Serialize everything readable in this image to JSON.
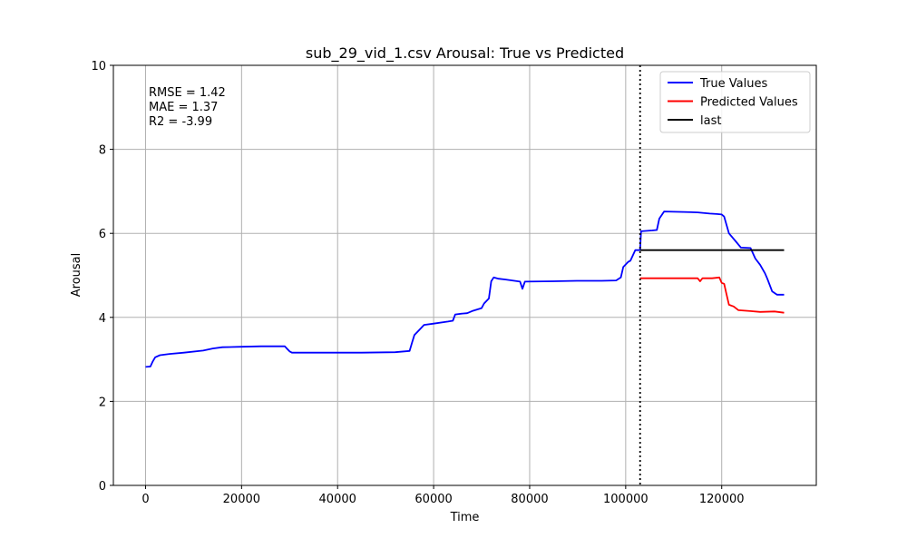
{
  "chart_data": {
    "type": "line",
    "title": "sub_29_vid_1.csv Arousal: True vs Predicted",
    "xlabel": "Time",
    "ylabel": "Arousal",
    "xlim": [
      -6700,
      139700
    ],
    "ylim": [
      0,
      10
    ],
    "x_ticks": [
      0,
      20000,
      40000,
      60000,
      80000,
      100000,
      120000
    ],
    "y_ticks": [
      0,
      2,
      4,
      6,
      8,
      10
    ],
    "grid": true,
    "legend_position": "upper right",
    "metrics": [
      "RMSE = 1.42",
      "MAE = 1.37",
      "R2 = -3.99"
    ],
    "vertical_marker": {
      "x": 103000,
      "style": "dotted",
      "color": "#000000"
    },
    "series": [
      {
        "name": "True Values",
        "color": "#0000ff",
        "points": [
          [
            0,
            2.82
          ],
          [
            1000,
            2.83
          ],
          [
            1500,
            2.95
          ],
          [
            2000,
            3.05
          ],
          [
            3000,
            3.1
          ],
          [
            5000,
            3.13
          ],
          [
            8000,
            3.16
          ],
          [
            12000,
            3.21
          ],
          [
            14000,
            3.26
          ],
          [
            16000,
            3.29
          ],
          [
            20000,
            3.3
          ],
          [
            24000,
            3.31
          ],
          [
            29000,
            3.31
          ],
          [
            29500,
            3.25
          ],
          [
            30000,
            3.19
          ],
          [
            30500,
            3.16
          ],
          [
            35000,
            3.16
          ],
          [
            45000,
            3.16
          ],
          [
            52000,
            3.17
          ],
          [
            55000,
            3.2
          ],
          [
            55500,
            3.4
          ],
          [
            56000,
            3.58
          ],
          [
            57000,
            3.7
          ],
          [
            58000,
            3.82
          ],
          [
            60000,
            3.85
          ],
          [
            63000,
            3.9
          ],
          [
            64000,
            3.92
          ],
          [
            64500,
            4.07
          ],
          [
            66000,
            4.09
          ],
          [
            67000,
            4.1
          ],
          [
            68000,
            4.15
          ],
          [
            70000,
            4.22
          ],
          [
            70500,
            4.33
          ],
          [
            71500,
            4.45
          ],
          [
            72000,
            4.86
          ],
          [
            72500,
            4.95
          ],
          [
            73500,
            4.92
          ],
          [
            75000,
            4.9
          ],
          [
            78000,
            4.85
          ],
          [
            78500,
            4.68
          ],
          [
            79000,
            4.85
          ],
          [
            85000,
            4.86
          ],
          [
            90000,
            4.87
          ],
          [
            95000,
            4.87
          ],
          [
            98000,
            4.88
          ],
          [
            99000,
            4.95
          ],
          [
            99500,
            5.2
          ],
          [
            100500,
            5.32
          ],
          [
            101000,
            5.35
          ],
          [
            102000,
            5.6
          ],
          [
            103000,
            5.6
          ],
          [
            103200,
            6.05
          ],
          [
            105500,
            6.07
          ],
          [
            106500,
            6.08
          ],
          [
            107000,
            6.35
          ],
          [
            108000,
            6.52
          ],
          [
            112000,
            6.51
          ],
          [
            115000,
            6.5
          ],
          [
            117500,
            6.47
          ],
          [
            119000,
            6.46
          ],
          [
            120000,
            6.45
          ],
          [
            120500,
            6.4
          ],
          [
            121500,
            6.0
          ],
          [
            123000,
            5.8
          ],
          [
            124000,
            5.66
          ],
          [
            126000,
            5.65
          ],
          [
            127000,
            5.4
          ],
          [
            128000,
            5.25
          ],
          [
            129000,
            5.05
          ],
          [
            129500,
            4.92
          ],
          [
            130500,
            4.62
          ],
          [
            131500,
            4.54
          ],
          [
            133000,
            4.54
          ]
        ]
      },
      {
        "name": "Predicted Values",
        "color": "#ff0000",
        "points": [
          [
            103000,
            4.93
          ],
          [
            108000,
            4.93
          ],
          [
            112000,
            4.93
          ],
          [
            115000,
            4.93
          ],
          [
            115500,
            4.86
          ],
          [
            116000,
            4.93
          ],
          [
            118000,
            4.93
          ],
          [
            119500,
            4.95
          ],
          [
            120000,
            4.82
          ],
          [
            120500,
            4.8
          ],
          [
            121000,
            4.55
          ],
          [
            121500,
            4.3
          ],
          [
            122500,
            4.26
          ],
          [
            123500,
            4.17
          ],
          [
            126000,
            4.15
          ],
          [
            128000,
            4.13
          ],
          [
            131000,
            4.14
          ],
          [
            133000,
            4.11
          ]
        ]
      },
      {
        "name": "last",
        "color": "#000000",
        "points": [
          [
            103000,
            5.6
          ],
          [
            133000,
            5.6
          ]
        ]
      }
    ]
  }
}
